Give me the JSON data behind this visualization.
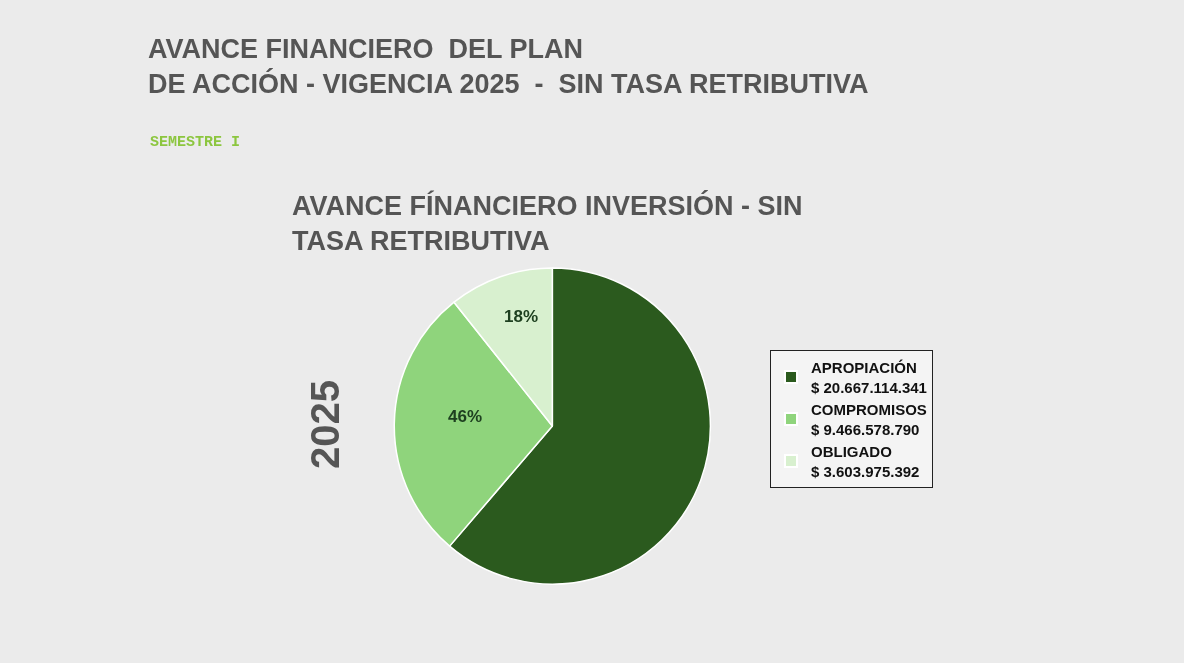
{
  "chart_data": {
    "type": "pie",
    "title": "AVANCE FINANCIERO  DEL PLAN\nDE ACCIÓN - VIGENCIA 2025  -  SIN TASA RETRIBUTIVA",
    "subtitle": "SEMESTRE I",
    "annotations": [
      "AVANCE FÍNANCIERO INVERSIÓN - SIN\nTASA RETRIBUTIVA",
      "2025",
      "46%",
      "18%"
    ],
    "categories": [
      "APROPIACIÓN\n$ 20.667.114.341",
      "COMPROMISOS\n$ 9.466.578.790",
      "OBLIGADO\n$ 3.603.975.392"
    ],
    "values": [
      20667114341,
      9466578790,
      3603975392
    ],
    "colors": [
      "#2b5a1e",
      "#8fd47c",
      "#d8f0cf"
    ],
    "legend": "right"
  }
}
